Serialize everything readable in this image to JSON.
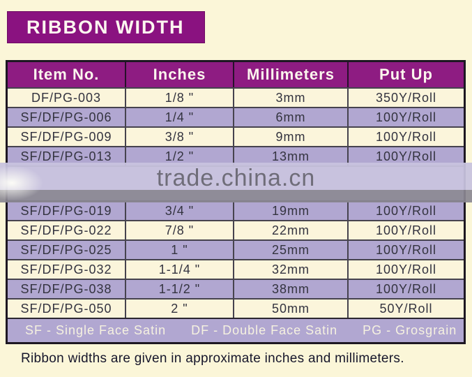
{
  "page": {
    "title": "RIBBON WIDTH",
    "caption": "Ribbon widths are given in approximate inches and millimeters."
  },
  "colors": {
    "page_background": "#FBF6D8",
    "title_purple": "#8A1280",
    "header_purple": "#8E1C82",
    "row_lavender": "#B1A7D1",
    "row_cream": "#FBF5DB",
    "watermark_band_gray": "#8B8893",
    "watermark_text_gray": "#6F6D79",
    "table_text_dark": "#33333F"
  },
  "table": {
    "columns": [
      "Item No.",
      "Inches",
      "Millimeters",
      "Put Up"
    ],
    "rows": [
      {
        "item": "DF/PG-003",
        "inches": "1/8 \"",
        "mm": "3mm",
        "put_up": "350Y/Roll"
      },
      {
        "item": "SF/DF/PG-006",
        "inches": "1/4 \"",
        "mm": "6mm",
        "put_up": "100Y/Roll"
      },
      {
        "item": "SF/DF/PG-009",
        "inches": "3/8 \"",
        "mm": "9mm",
        "put_up": "100Y/Roll"
      },
      {
        "item": "SF/DF/PG-013",
        "inches": "1/2 \"",
        "mm": "13mm",
        "put_up": "100Y/Roll"
      },
      {
        "item": "SF/DF/PG-019",
        "inches": "3/4 \"",
        "mm": "19mm",
        "put_up": "100Y/Roll"
      },
      {
        "item": "SF/DF/PG-022",
        "inches": "7/8 \"",
        "mm": "22mm",
        "put_up": "100Y/Roll"
      },
      {
        "item": "SF/DF/PG-025",
        "inches": "1 \"",
        "mm": "25mm",
        "put_up": "100Y/Roll"
      },
      {
        "item": "SF/DF/PG-032",
        "inches": "1-1/4 \"",
        "mm": "32mm",
        "put_up": "100Y/Roll"
      },
      {
        "item": "SF/DF/PG-038",
        "inches": "1-1/2 \"",
        "mm": "38mm",
        "put_up": "100Y/Roll"
      },
      {
        "item": "SF/DF/PG-050",
        "inches": "2 \"",
        "mm": "50mm",
        "put_up": "50Y/Roll"
      }
    ],
    "legend": [
      "SF - Single Face Satin",
      "DF - Double Face Satin",
      "PG - Grosgrain"
    ]
  },
  "watermark": {
    "text": "trade.china.cn",
    "after_row": 4
  }
}
